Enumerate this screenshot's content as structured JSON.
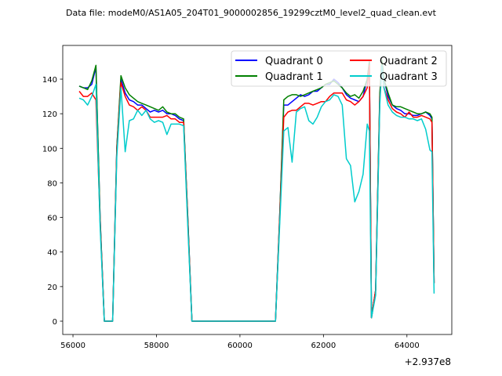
{
  "chart_data": {
    "type": "line",
    "title": "Data file: modeM0/AS1A05_204T01_9000002856_19299cztM0_level2_quad_clean.evt",
    "offset_label": "+2.937e8",
    "xlim": [
      55755,
      65075
    ],
    "ylim": [
      -7.7,
      159.5
    ],
    "xticks": [
      56000,
      58000,
      60000,
      62000,
      64000
    ],
    "yticks": [
      0,
      20,
      40,
      60,
      80,
      100,
      120,
      140
    ],
    "legend_position": "top-right",
    "x": [
      56150,
      56250,
      56350,
      56450,
      56550,
      56650,
      56750,
      56850,
      56950,
      57050,
      57150,
      57250,
      57350,
      57450,
      57550,
      57650,
      57750,
      57850,
      57950,
      58050,
      58150,
      58250,
      58350,
      58450,
      58550,
      58650,
      58750,
      58850,
      60850,
      60950,
      61050,
      61150,
      61250,
      61350,
      61450,
      61550,
      61650,
      61750,
      61850,
      61950,
      62050,
      62150,
      62250,
      62350,
      62450,
      62550,
      62650,
      62750,
      62850,
      62950,
      63050,
      63100,
      63150,
      63250,
      63350,
      63400,
      63450,
      63550,
      63650,
      63750,
      63850,
      63950,
      64050,
      64150,
      64250,
      64350,
      64450,
      64550,
      64600,
      64650
    ],
    "series": [
      {
        "name": "Quadrant 0",
        "color": "#0000ff",
        "values": [
          136,
          135,
          135,
          137,
          147,
          60,
          0,
          0,
          0,
          100,
          140,
          132,
          128,
          127,
          125,
          125,
          123,
          121,
          122,
          121,
          122,
          120,
          120,
          119,
          117,
          116,
          60,
          0,
          0,
          60,
          125,
          125,
          127,
          129,
          131,
          130,
          131,
          133,
          133,
          135,
          137,
          137,
          140,
          138,
          135,
          131,
          129,
          128,
          127,
          130,
          140,
          150,
          2,
          18,
          130,
          150,
          140,
          130,
          125,
          123,
          122,
          120,
          120,
          119,
          119,
          120,
          121,
          119,
          117,
          22
        ]
      },
      {
        "name": "Quadrant 1",
        "color": "#008000",
        "values": [
          136,
          135,
          134,
          139,
          148,
          60,
          0,
          0,
          0,
          100,
          142,
          135,
          131,
          129,
          127,
          126,
          125,
          124,
          123,
          122,
          124,
          121,
          120,
          120,
          118,
          117,
          60,
          0,
          0,
          60,
          128,
          130,
          131,
          131,
          130,
          131,
          132,
          133,
          134,
          135,
          137,
          138,
          139,
          137,
          135,
          132,
          130,
          131,
          129,
          133,
          140,
          150,
          2,
          18,
          132,
          151,
          140,
          132,
          125,
          124,
          124,
          123,
          122,
          121,
          120,
          120,
          121,
          120,
          118,
          22
        ]
      },
      {
        "name": "Quadrant 2",
        "color": "#ff0000",
        "values": [
          133,
          130,
          130,
          132,
          128,
          58,
          0,
          0,
          0,
          98,
          138,
          130,
          125,
          124,
          122,
          124,
          122,
          118,
          118,
          118,
          118,
          119,
          117,
          117,
          115,
          115,
          58,
          0,
          0,
          58,
          118,
          121,
          122,
          122,
          124,
          126,
          126,
          125,
          126,
          127,
          127,
          130,
          132,
          132,
          132,
          128,
          127,
          125,
          127,
          130,
          135,
          148,
          2,
          18,
          128,
          148,
          135,
          128,
          123,
          121,
          120,
          118,
          121,
          118,
          118,
          119,
          118,
          117,
          115,
          22
        ]
      },
      {
        "name": "Quadrant 3",
        "color": "#00cccc",
        "values": [
          129,
          128,
          125,
          130,
          137,
          55,
          0,
          0,
          0,
          95,
          135,
          98,
          116,
          117,
          122,
          119,
          122,
          117,
          115,
          116,
          115,
          108,
          114,
          114,
          114,
          113,
          55,
          0,
          0,
          55,
          110,
          112,
          92,
          121,
          123,
          124,
          116,
          114,
          118,
          124,
          127,
          128,
          131,
          130,
          125,
          94,
          90,
          69,
          75,
          85,
          114,
          110,
          2,
          15,
          125,
          148,
          135,
          125,
          121,
          119,
          118,
          118,
          117,
          117,
          116,
          117,
          111,
          99,
          98,
          16
        ]
      }
    ]
  }
}
